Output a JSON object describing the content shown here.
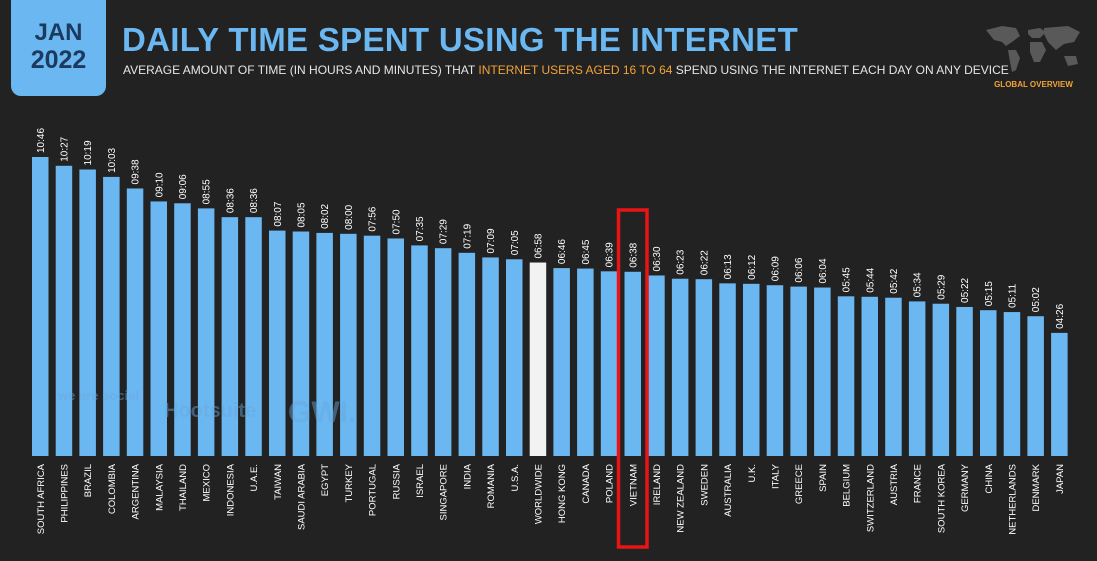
{
  "header": {
    "badge_month": "JAN",
    "badge_year": "2022",
    "title": "DAILY TIME SPENT USING THE INTERNET",
    "subtitle_pre": "AVERAGE AMOUNT OF TIME (IN HOURS AND MINUTES) THAT ",
    "subtitle_highlight": "INTERNET USERS AGED 16 TO 64",
    "subtitle_post": " SPEND USING THE INTERNET EACH DAY ON ANY DEVICE",
    "report_label": "GLOBAL OVERVIEW"
  },
  "watermarks": {
    "we_are_social": "we are social",
    "hootsuite": "Hootsuite",
    "gwi": "GWI."
  },
  "colors": {
    "background": "#222222",
    "bar": "#6bb7f1",
    "bar_highlight": "#f2f2f2",
    "title": "#6bb7f1",
    "accent": "#f2a33a",
    "highlight_box": "#e81416"
  },
  "chart_data": {
    "type": "bar",
    "categories": [
      "SOUTH AFRICA",
      "PHILIPPINES",
      "BRAZIL",
      "COLOMBIA",
      "ARGENTINA",
      "MALAYSIA",
      "THAILAND",
      "MEXICO",
      "INDONESIA",
      "U.A.E.",
      "TAIWAN",
      "SAUDI ARABIA",
      "EGYPT",
      "TURKEY",
      "PORTUGAL",
      "RUSSIA",
      "ISRAEL",
      "SINGAPORE",
      "INDIA",
      "ROMANIA",
      "U.S.A.",
      "WORLDWIDE",
      "HONG KONG",
      "CANADA",
      "POLAND",
      "VIETNAM",
      "IRELAND",
      "NEW ZEALAND",
      "SWEDEN",
      "AUSTRALIA",
      "U.K.",
      "ITALY",
      "GREECE",
      "SPAIN",
      "BELGIUM",
      "SWITZERLAND",
      "AUSTRIA",
      "FRANCE",
      "SOUTH KOREA",
      "GERMANY",
      "CHINA",
      "NETHERLANDS",
      "DENMARK",
      "JAPAN"
    ],
    "labels": [
      "10:46",
      "10:27",
      "10:19",
      "10:03",
      "09:38",
      "09:10",
      "09:06",
      "08:55",
      "08:36",
      "08:36",
      "08:07",
      "08:05",
      "08:02",
      "08:00",
      "07:56",
      "07:50",
      "07:35",
      "07:29",
      "07:19",
      "07:09",
      "07:05",
      "06:58",
      "06:46",
      "06:45",
      "06:39",
      "06:38",
      "06:30",
      "06:23",
      "06:22",
      "06:13",
      "06:12",
      "06:09",
      "06:06",
      "06:04",
      "05:45",
      "05:44",
      "05:42",
      "05:34",
      "05:29",
      "05:22",
      "05:15",
      "05:11",
      "05:02",
      "04:26"
    ],
    "values": [
      646,
      627,
      619,
      603,
      578,
      550,
      546,
      535,
      516,
      516,
      487,
      485,
      482,
      480,
      476,
      470,
      455,
      449,
      439,
      429,
      425,
      418,
      406,
      405,
      399,
      398,
      390,
      383,
      382,
      373,
      372,
      369,
      366,
      364,
      345,
      344,
      342,
      334,
      329,
      322,
      315,
      311,
      302,
      266
    ],
    "value_unit": "minutes",
    "highlighted_bar": "WORLDWIDE",
    "boxed_category": "VIETNAM",
    "ylim": [
      0,
      720
    ],
    "grid": false,
    "legend": "none"
  }
}
